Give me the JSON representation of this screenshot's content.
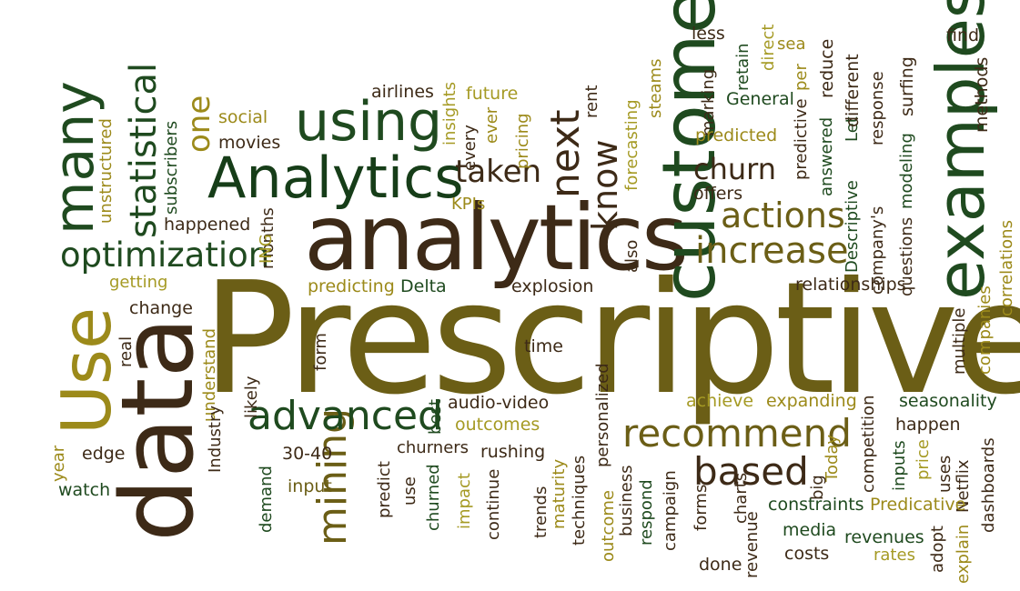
{
  "palette": {
    "dark_brown": "#3d2a17",
    "olive": "#6b5e16",
    "dark_green": "#1f4a1f",
    "mustard": "#9c8a1a",
    "light_olive": "#a59a24",
    "deep_green": "#163d18"
  },
  "words": [
    "Prescriptive",
    "analytics",
    "data",
    "Use",
    "customers",
    "examples",
    "Analytics",
    "using",
    "many",
    "optimization",
    "statistical",
    "mining",
    "advanced",
    "recommend",
    "based",
    "increase",
    "actions",
    "churn",
    "taken",
    "next",
    "know",
    "one",
    "less",
    "retain",
    "direct",
    "sea",
    "find",
    "General",
    "per",
    "reduce",
    "Let",
    "different",
    "response",
    "surfing",
    "methods",
    "marking",
    "steams",
    "forecasting",
    "rent",
    "future",
    "insights",
    "airlines",
    "social",
    "movies",
    "subscribers",
    "unstructured",
    "happened",
    "months",
    "ING",
    "getting",
    "change",
    "real",
    "understand",
    "likely",
    "form",
    "Industry",
    "year",
    "edge",
    "watch",
    "demand",
    "30-40",
    "input",
    "predict",
    "use",
    "churned",
    "impact",
    "continue",
    "trends",
    "maturity",
    "techniques",
    "personalized",
    "business",
    "respond",
    "campaign",
    "forms",
    "revenue",
    "done",
    "charts",
    "media",
    "costs",
    "revenues",
    "rates",
    "adopt",
    "explain",
    "dashboards",
    "Netflix",
    "uses",
    "price",
    "inputs",
    "competition",
    "happen",
    "seasonality",
    "multiple",
    "companies",
    "correlations",
    "questions",
    "modeling",
    "company's",
    "Descriptive",
    "answered",
    "predictive",
    "predicted",
    "offers",
    "ever",
    "every",
    "KPIs",
    "pricing",
    "also",
    "Delta",
    "predicting",
    "explosion",
    "time",
    "audio-video",
    "best",
    "outcomes",
    "rushing",
    "churners",
    "achieve",
    "expanding",
    "Today",
    "big",
    "outcome",
    "relationships",
    "constraints",
    "Predicative"
  ]
}
